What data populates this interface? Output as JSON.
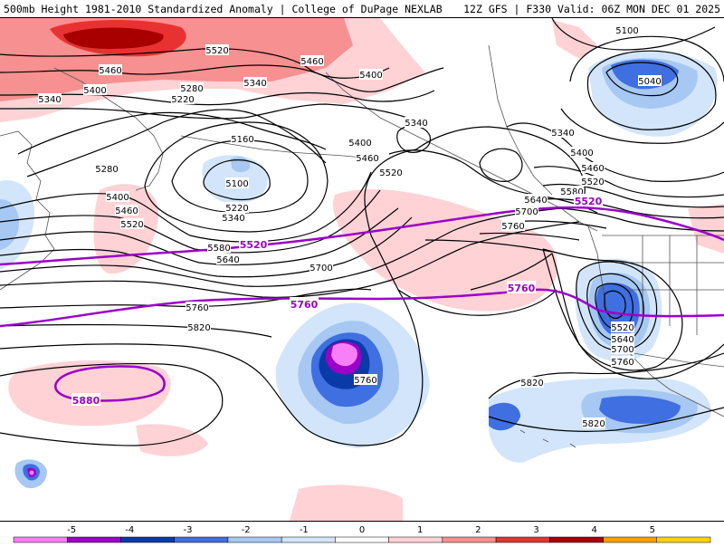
{
  "header": {
    "left_title": "500mb Height 1981-2010 Standardized Anomaly | College of DuPage NEXLAB",
    "right_title": "12Z GFS | F330 Valid: 06Z MON DEC 01 2025"
  },
  "legend": {
    "ticks": [
      "-5",
      "-4",
      "-3",
      "-2",
      "-1",
      "0",
      "1",
      "2",
      "3",
      "4",
      "5"
    ],
    "colors": [
      "#f77ff7",
      "#9c00c8",
      "#0a3aa8",
      "#3f6fe0",
      "#a6c8f2",
      "#d2e5fa",
      "#ffffff",
      "#ffd2d6",
      "#f79090",
      "#e83232",
      "#a80000",
      "#f7a000",
      "#ffd200"
    ]
  },
  "contour_labels": [
    {
      "text": "5520",
      "name": "label-5520"
    },
    {
      "text": "5460",
      "name": "label-5460"
    },
    {
      "text": "5400",
      "name": "label-5400"
    },
    {
      "text": "5340",
      "name": "label-5340"
    },
    {
      "text": "5280",
      "name": "label-5280"
    },
    {
      "text": "5220",
      "name": "label-5220"
    },
    {
      "text": "5160",
      "name": "label-5160"
    },
    {
      "text": "5100",
      "name": "label-5100"
    },
    {
      "text": "5040",
      "name": "label-5040"
    },
    {
      "text": "5580",
      "name": "label-5580"
    },
    {
      "text": "5640",
      "name": "label-5640"
    },
    {
      "text": "5700",
      "name": "label-5700"
    },
    {
      "text": "5760",
      "name": "label-5760"
    },
    {
      "text": "5820",
      "name": "label-5820"
    },
    {
      "text": "5880",
      "name": "label-5880"
    }
  ],
  "highlight_labels": {
    "p5520": "5520",
    "p5760": "5760",
    "p5880": "5880"
  },
  "colors": {
    "highlight_contour": "#9b00c8",
    "contour": "#000000",
    "coastline": "#555555"
  }
}
